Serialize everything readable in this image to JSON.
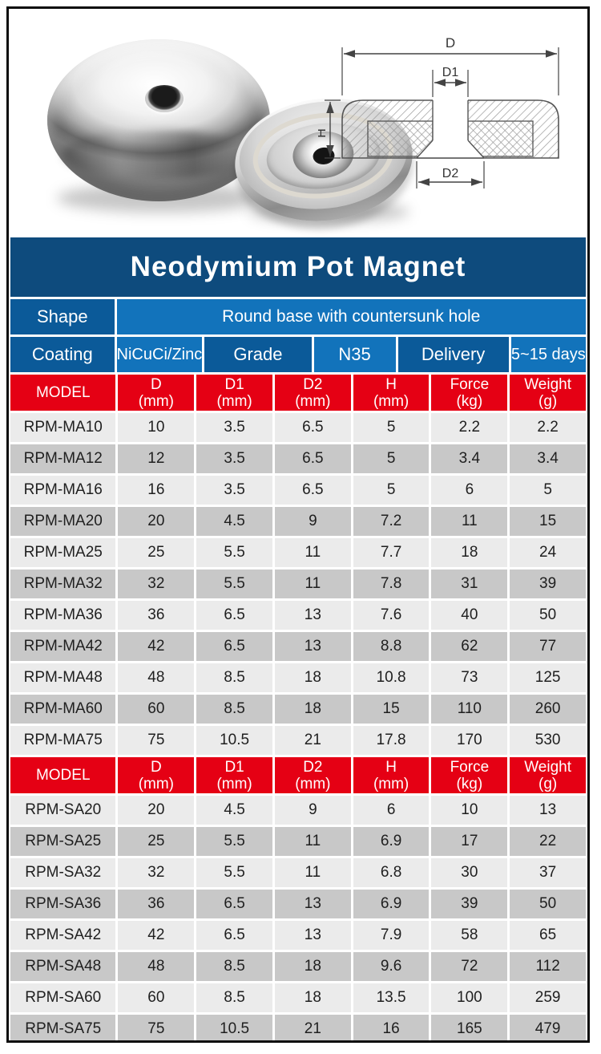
{
  "title": "Neodymium Pot Magnet",
  "colors": {
    "title_blue": "#0e4b7d",
    "label_blue": "#0b5a99",
    "value_blue": "#1273bb",
    "header_red": "#e50014",
    "row_light": "#ebebeb",
    "row_dark": "#c8c8c8"
  },
  "info": {
    "shape_label": "Shape",
    "shape_value": "Round base with countersunk hole",
    "coating_label": "Coating",
    "coating_value": "NiCuCi/Zinc",
    "grade_label": "Grade",
    "grade_value": "N35",
    "delivery_label": "Delivery",
    "delivery_value": "5~15 days"
  },
  "diagram_labels": {
    "d": "D",
    "d1": "D1",
    "d2": "D2",
    "h": "H"
  },
  "columns": [
    {
      "name": "MODEL",
      "unit": ""
    },
    {
      "name": "D",
      "unit": "(mm)"
    },
    {
      "name": "D1",
      "unit": "(mm)"
    },
    {
      "name": "D2",
      "unit": "(mm)"
    },
    {
      "name": "H",
      "unit": "(mm)"
    },
    {
      "name": "Force",
      "unit": "(kg)"
    },
    {
      "name": "Weight",
      "unit": "(g)"
    }
  ],
  "table_ma": {
    "rows": [
      [
        "RPM-MA10",
        "10",
        "3.5",
        "6.5",
        "5",
        "2.2",
        "2.2"
      ],
      [
        "RPM-MA12",
        "12",
        "3.5",
        "6.5",
        "5",
        "3.4",
        "3.4"
      ],
      [
        "RPM-MA16",
        "16",
        "3.5",
        "6.5",
        "5",
        "6",
        "5"
      ],
      [
        "RPM-MA20",
        "20",
        "4.5",
        "9",
        "7.2",
        "11",
        "15"
      ],
      [
        "RPM-MA25",
        "25",
        "5.5",
        "11",
        "7.7",
        "18",
        "24"
      ],
      [
        "RPM-MA32",
        "32",
        "5.5",
        "11",
        "7.8",
        "31",
        "39"
      ],
      [
        "RPM-MA36",
        "36",
        "6.5",
        "13",
        "7.6",
        "40",
        "50"
      ],
      [
        "RPM-MA42",
        "42",
        "6.5",
        "13",
        "8.8",
        "62",
        "77"
      ],
      [
        "RPM-MA48",
        "48",
        "8.5",
        "18",
        "10.8",
        "73",
        "125"
      ],
      [
        "RPM-MA60",
        "60",
        "8.5",
        "18",
        "15",
        "110",
        "260"
      ],
      [
        "RPM-MA75",
        "75",
        "10.5",
        "21",
        "17.8",
        "170",
        "530"
      ]
    ]
  },
  "table_sa": {
    "rows": [
      [
        "RPM-SA20",
        "20",
        "4.5",
        "9",
        "6",
        "10",
        "13"
      ],
      [
        "RPM-SA25",
        "25",
        "5.5",
        "11",
        "6.9",
        "17",
        "22"
      ],
      [
        "RPM-SA32",
        "32",
        "5.5",
        "11",
        "6.8",
        "30",
        "37"
      ],
      [
        "RPM-SA36",
        "36",
        "6.5",
        "13",
        "6.9",
        "39",
        "50"
      ],
      [
        "RPM-SA42",
        "42",
        "6.5",
        "13",
        "7.9",
        "58",
        "65"
      ],
      [
        "RPM-SA48",
        "48",
        "8.5",
        "18",
        "9.6",
        "72",
        "112"
      ],
      [
        "RPM-SA60",
        "60",
        "8.5",
        "18",
        "13.5",
        "100",
        "259"
      ],
      [
        "RPM-SA75",
        "75",
        "10.5",
        "21",
        "16",
        "165",
        "479"
      ]
    ]
  }
}
